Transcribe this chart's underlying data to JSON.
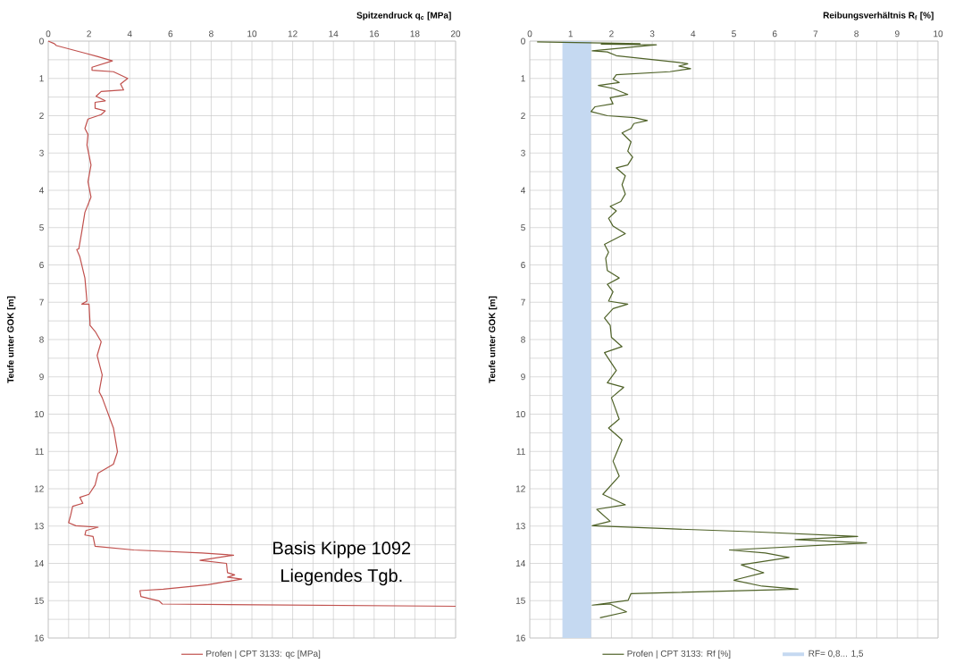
{
  "chart_data": [
    {
      "type": "line",
      "xlabel": "Spitzendruck q$_{c}$ [MPa]",
      "ylabel": "Teufe unter GOK [m]",
      "xlim": [
        0,
        20
      ],
      "ylim": [
        16,
        0
      ],
      "xticks": [
        0,
        {
          "value": 1,
          "label": null
        },
        2,
        {
          "value": 3,
          "label": null
        },
        4,
        {
          "value": 5,
          "label": null
        },
        6,
        {
          "value": 7,
          "label": null
        },
        8,
        {
          "value": 9,
          "label": null
        },
        10,
        {
          "value": 11,
          "label": null
        },
        12,
        {
          "value": 13,
          "label": null
        },
        14,
        {
          "value": 15,
          "label": null
        },
        16,
        {
          "value": 17,
          "label": null
        },
        18,
        {
          "value": 19,
          "label": null
        },
        20
      ],
      "yticks": [
        0,
        {
          "value": 0.5,
          "label": null
        },
        1,
        {
          "value": 1.5,
          "label": null
        },
        2,
        {
          "value": 2.5,
          "label": null
        },
        3,
        {
          "value": 3.5,
          "label": null
        },
        4,
        {
          "value": 4.5,
          "label": null
        },
        5,
        {
          "value": 5.5,
          "label": null
        },
        6,
        {
          "value": 6.5,
          "label": null
        },
        7,
        {
          "value": 7.5,
          "label": null
        },
        8,
        {
          "value": 8.5,
          "label": null
        },
        9,
        {
          "value": 9.5,
          "label": null
        },
        10,
        {
          "value": 10.5,
          "label": null
        },
        11,
        {
          "value": 11.5,
          "label": null
        },
        12,
        {
          "value": 12.5,
          "label": null
        },
        13,
        {
          "value": 13.5,
          "label": null
        },
        14,
        {
          "value": 14.5,
          "label": null
        },
        15,
        {
          "value": 15.5,
          "label": null
        },
        16
      ],
      "grid": true,
      "legend": "bottom",
      "annotations": [
        "Basis Kippe 1092",
        "Liegendes Tgb."
      ],
      "series": [
        {
          "name": "Profen | CPT 3133: qc [MPa]",
          "color": "#c0504d",
          "x": [
            0,
            0.3,
            0.4,
            1.85,
            2.4,
            3.15,
            2.15,
            2.15,
            3.2,
            3.9,
            3.55,
            3.7,
            2.6,
            2.35,
            2.8,
            2.3,
            2.3,
            2.8,
            2.6,
            1.95,
            1.8,
            1.95,
            1.9,
            2.1,
            1.95,
            2.1,
            1.8,
            1.65,
            1.5,
            1.4,
            1.55,
            1.8,
            1.9,
            1.65,
            2.0,
            2.05,
            2.05,
            2.3,
            2.6,
            2.4,
            2.65,
            2.5,
            2.65,
            3.2,
            3.4,
            3.2,
            2.45,
            2.3,
            2.0,
            1.55,
            1.7,
            1.2,
            1.1,
            1.0,
            1.35,
            2.45,
            1.85,
            1.8,
            2.2,
            2.3,
            4.2,
            7.55,
            9.1,
            7.45,
            8.75,
            8.8,
            9.15,
            8.8,
            9.5,
            7.85,
            5.65,
            4.5,
            4.55,
            5.45,
            5.6,
            20.0
          ],
          "values": [
            0,
            0.07,
            0.12,
            0.33,
            0.41,
            0.53,
            0.7,
            0.78,
            0.82,
            1.0,
            1.15,
            1.31,
            1.35,
            1.48,
            1.6,
            1.64,
            1.8,
            1.87,
            1.97,
            2.09,
            2.34,
            2.5,
            2.79,
            3.32,
            3.77,
            4.18,
            4.59,
            5.1,
            5.57,
            5.59,
            5.78,
            6.35,
            6.97,
            7.05,
            7.05,
            7.54,
            7.62,
            7.78,
            8.06,
            8.43,
            8.95,
            9.4,
            9.56,
            10.37,
            11.01,
            11.34,
            11.58,
            11.9,
            12.15,
            12.23,
            12.39,
            12.47,
            12.71,
            12.91,
            12.99,
            13.03,
            13.12,
            13.24,
            13.28,
            13.54,
            13.64,
            13.72,
            13.78,
            13.92,
            14.0,
            14.25,
            14.31,
            14.37,
            14.42,
            14.57,
            14.69,
            14.73,
            14.89,
            15.01,
            15.09,
            15.15
          ]
        }
      ]
    },
    {
      "type": "line",
      "xlabel": "Reibungsverhältnis R$_{f}$ [%]",
      "ylabel": "Teufe unter GOK [m]",
      "xlim": [
        0,
        10
      ],
      "ylim": [
        16,
        0
      ],
      "xticks": [
        0,
        {
          "value": 0.5,
          "label": null
        },
        1,
        {
          "value": 1.5,
          "label": null
        },
        2,
        {
          "value": 2.5,
          "label": null
        },
        3,
        {
          "value": 3.5,
          "label": null
        },
        4,
        {
          "value": 4.5,
          "label": null
        },
        5,
        {
          "value": 5.5,
          "label": null
        },
        6,
        {
          "value": 6.5,
          "label": null
        },
        7,
        {
          "value": 7.5,
          "label": null
        },
        8,
        {
          "value": 8.5,
          "label": null
        },
        9,
        {
          "value": 9.5,
          "label": null
        },
        10
      ],
      "yticks": [
        0,
        {
          "value": 0.5,
          "label": null
        },
        1,
        {
          "value": 1.5,
          "label": null
        },
        2,
        {
          "value": 2.5,
          "label": null
        },
        3,
        {
          "value": 3.5,
          "label": null
        },
        4,
        {
          "value": 4.5,
          "label": null
        },
        5,
        {
          "value": 5.5,
          "label": null
        },
        6,
        {
          "value": 6.5,
          "label": null
        },
        7,
        {
          "value": 7.5,
          "label": null
        },
        8,
        {
          "value": 8.5,
          "label": null
        },
        9,
        {
          "value": 9.5,
          "label": null
        },
        10,
        {
          "value": 10.5,
          "label": null
        },
        11,
        {
          "value": 11.5,
          "label": null
        },
        12,
        {
          "value": 12.5,
          "label": null
        },
        13,
        {
          "value": 13.5,
          "label": null
        },
        14,
        {
          "value": 14.5,
          "label": null
        },
        15,
        {
          "value": 15.5,
          "label": null
        },
        16
      ],
      "grid": true,
      "legend": "bottom",
      "bands": [
        {
          "axis": "x",
          "from": 0.8,
          "to": 1.5,
          "label": "RF= 0,8... 1,5",
          "color": "#c5d9f1"
        }
      ],
      "series": [
        {
          "name": "Profen | CPT 3133: Rf [%]",
          "color": "#4f6228",
          "x": [
            0.18,
            2.7,
            1.75,
            3.1,
            1.53,
            1.9,
            2.12,
            3.65,
            3.87,
            3.65,
            3.94,
            3.43,
            2.12,
            2.04,
            2.19,
            1.68,
            2.04,
            2.4,
            1.97,
            2.04,
            1.6,
            1.5,
            1.9,
            2.55,
            2.88,
            2.55,
            2.48,
            2.26,
            2.48,
            2.4,
            2.52,
            2.4,
            2.12,
            2.34,
            2.26,
            2.34,
            2.23,
            1.97,
            2.12,
            1.93,
            2.04,
            2.34,
            1.83,
            1.93,
            1.86,
            1.9,
            2.19,
            1.9,
            2.04,
            1.93,
            2.4,
            2.04,
            1.83,
            1.97,
            2.0,
            2.26,
            1.83,
            2.12,
            1.9,
            2.3,
            2.0,
            2.19,
            1.93,
            2.26,
            2.04,
            2.19,
            1.79,
            2.34,
            1.64,
            1.97,
            1.53,
            3.36,
            5.4,
            8.03,
            6.5,
            8.25,
            4.89,
            5.77,
            6.35,
            5.18,
            5.73,
            5.0,
            5.69,
            6.57,
            2.48,
            2.41,
            1.53,
            1.97,
            2.37,
            1.72
          ],
          "values": [
            0.02,
            0.07,
            0.08,
            0.1,
            0.26,
            0.29,
            0.39,
            0.57,
            0.61,
            0.67,
            0.74,
            0.82,
            0.9,
            1.02,
            1.11,
            1.19,
            1.27,
            1.43,
            1.52,
            1.68,
            1.76,
            1.89,
            2.0,
            2.05,
            2.13,
            2.21,
            2.34,
            2.46,
            2.7,
            2.95,
            3.11,
            3.32,
            3.4,
            3.61,
            3.85,
            4.1,
            4.3,
            4.43,
            4.55,
            4.75,
            4.96,
            5.16,
            5.45,
            5.66,
            5.82,
            6.15,
            6.35,
            6.52,
            6.72,
            6.97,
            7.05,
            7.17,
            7.42,
            7.62,
            7.94,
            8.19,
            8.35,
            8.83,
            9.16,
            9.28,
            9.56,
            10.13,
            10.37,
            10.69,
            11.26,
            11.66,
            12.15,
            12.43,
            12.55,
            12.87,
            12.99,
            13.07,
            13.15,
            13.28,
            13.36,
            13.45,
            13.64,
            13.72,
            13.84,
            14.04,
            14.25,
            14.45,
            14.61,
            14.69,
            14.81,
            14.99,
            15.12,
            15.09,
            15.3,
            15.46
          ]
        }
      ]
    }
  ]
}
